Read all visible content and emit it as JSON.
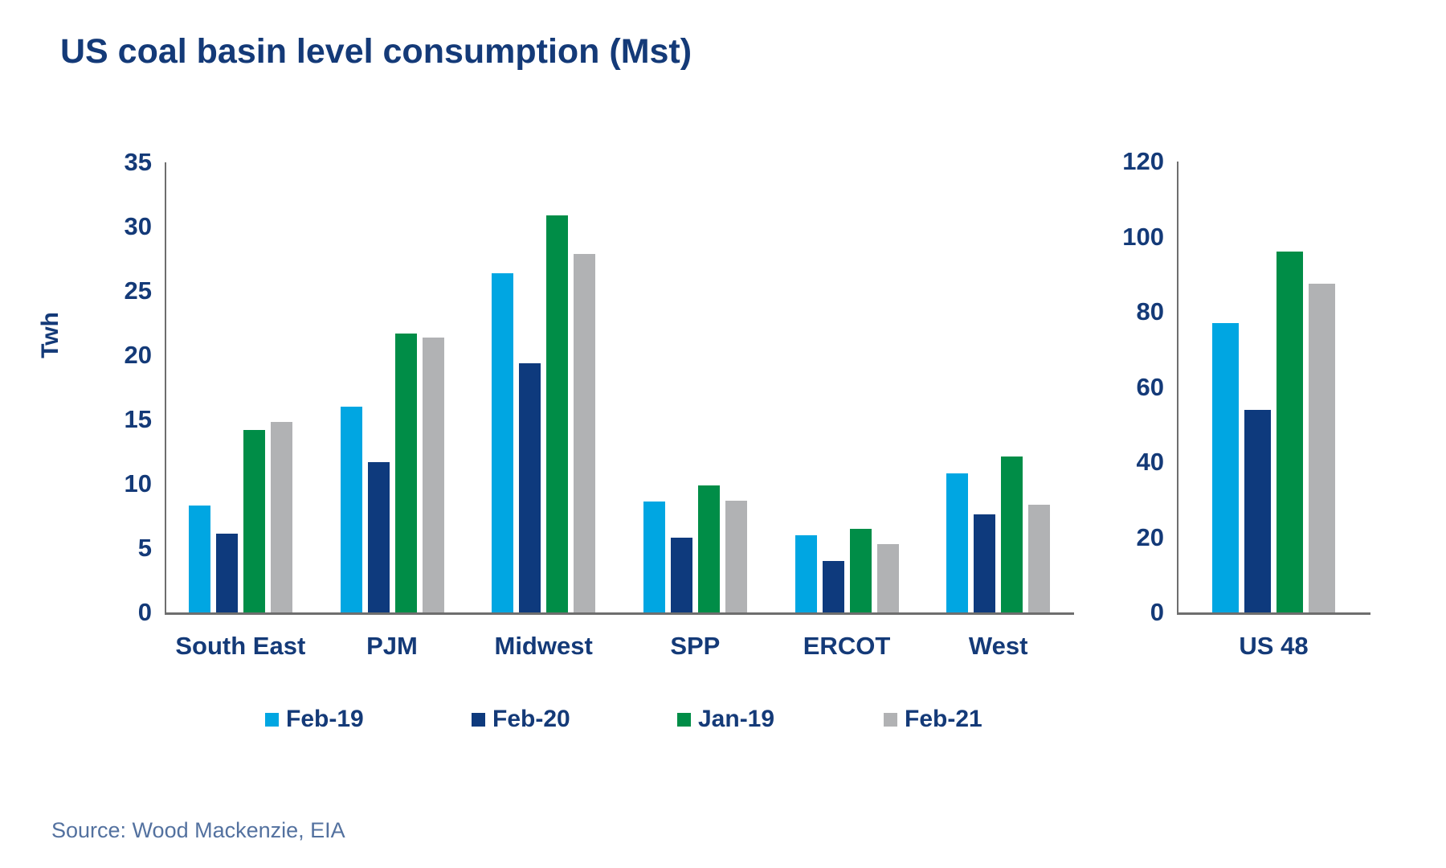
{
  "title": "US coal basin level consumption (Mst)",
  "source": "Source: Wood Mackenzie, EIA",
  "y_axis_label": "Twh",
  "colors": {
    "feb19_blue": "#00a6e2",
    "feb20_navy": "#0e3a7d",
    "jan19_green": "#008d47",
    "feb21_gray": "#b1b2b4",
    "text_navy": "#143a78",
    "axis_gray": "#6e6e6e",
    "source_text": "#53719f"
  },
  "legend": [
    {
      "label": "Feb-19",
      "color": "#00a6e2"
    },
    {
      "label": "Feb-20",
      "color": "#0e3a7d"
    },
    {
      "label": "Jan-19",
      "color": "#008d47"
    },
    {
      "label": "Feb-21",
      "color": "#b1b2b4"
    }
  ],
  "chart_data": [
    {
      "type": "bar",
      "title": "US coal basin level consumption (Mst)",
      "ylabel": "Twh",
      "categories": [
        "South East",
        "PJM",
        "Midwest",
        "SPP",
        "ERCOT",
        "West"
      ],
      "series": [
        {
          "name": "Feb-19",
          "color": "#00a6e2",
          "values": [
            8.3,
            16.0,
            26.4,
            8.6,
            6.0,
            10.8
          ]
        },
        {
          "name": "Feb-20",
          "color": "#0e3a7d",
          "values": [
            6.1,
            11.7,
            19.4,
            5.8,
            4.0,
            7.6
          ]
        },
        {
          "name": "Jan-19",
          "color": "#008d47",
          "values": [
            14.2,
            21.7,
            30.9,
            9.9,
            6.5,
            12.1
          ]
        },
        {
          "name": "Feb-21",
          "color": "#b1b2b4",
          "values": [
            14.8,
            21.4,
            27.9,
            8.7,
            5.3,
            8.4
          ]
        }
      ],
      "ylim": [
        0,
        35
      ],
      "ytick_step": 5,
      "grid": false,
      "legend_position": "bottom"
    },
    {
      "type": "bar",
      "title": "",
      "ylabel": "",
      "categories": [
        "US 48"
      ],
      "series": [
        {
          "name": "Feb-19",
          "color": "#00a6e2",
          "values": [
            77
          ]
        },
        {
          "name": "Feb-20",
          "color": "#0e3a7d",
          "values": [
            54
          ]
        },
        {
          "name": "Jan-19",
          "color": "#008d47",
          "values": [
            96
          ]
        },
        {
          "name": "Feb-21",
          "color": "#b1b2b4",
          "values": [
            87.5
          ]
        }
      ],
      "ylim": [
        0,
        120
      ],
      "ytick_step": 20,
      "grid": false,
      "legend_position": "none"
    }
  ]
}
